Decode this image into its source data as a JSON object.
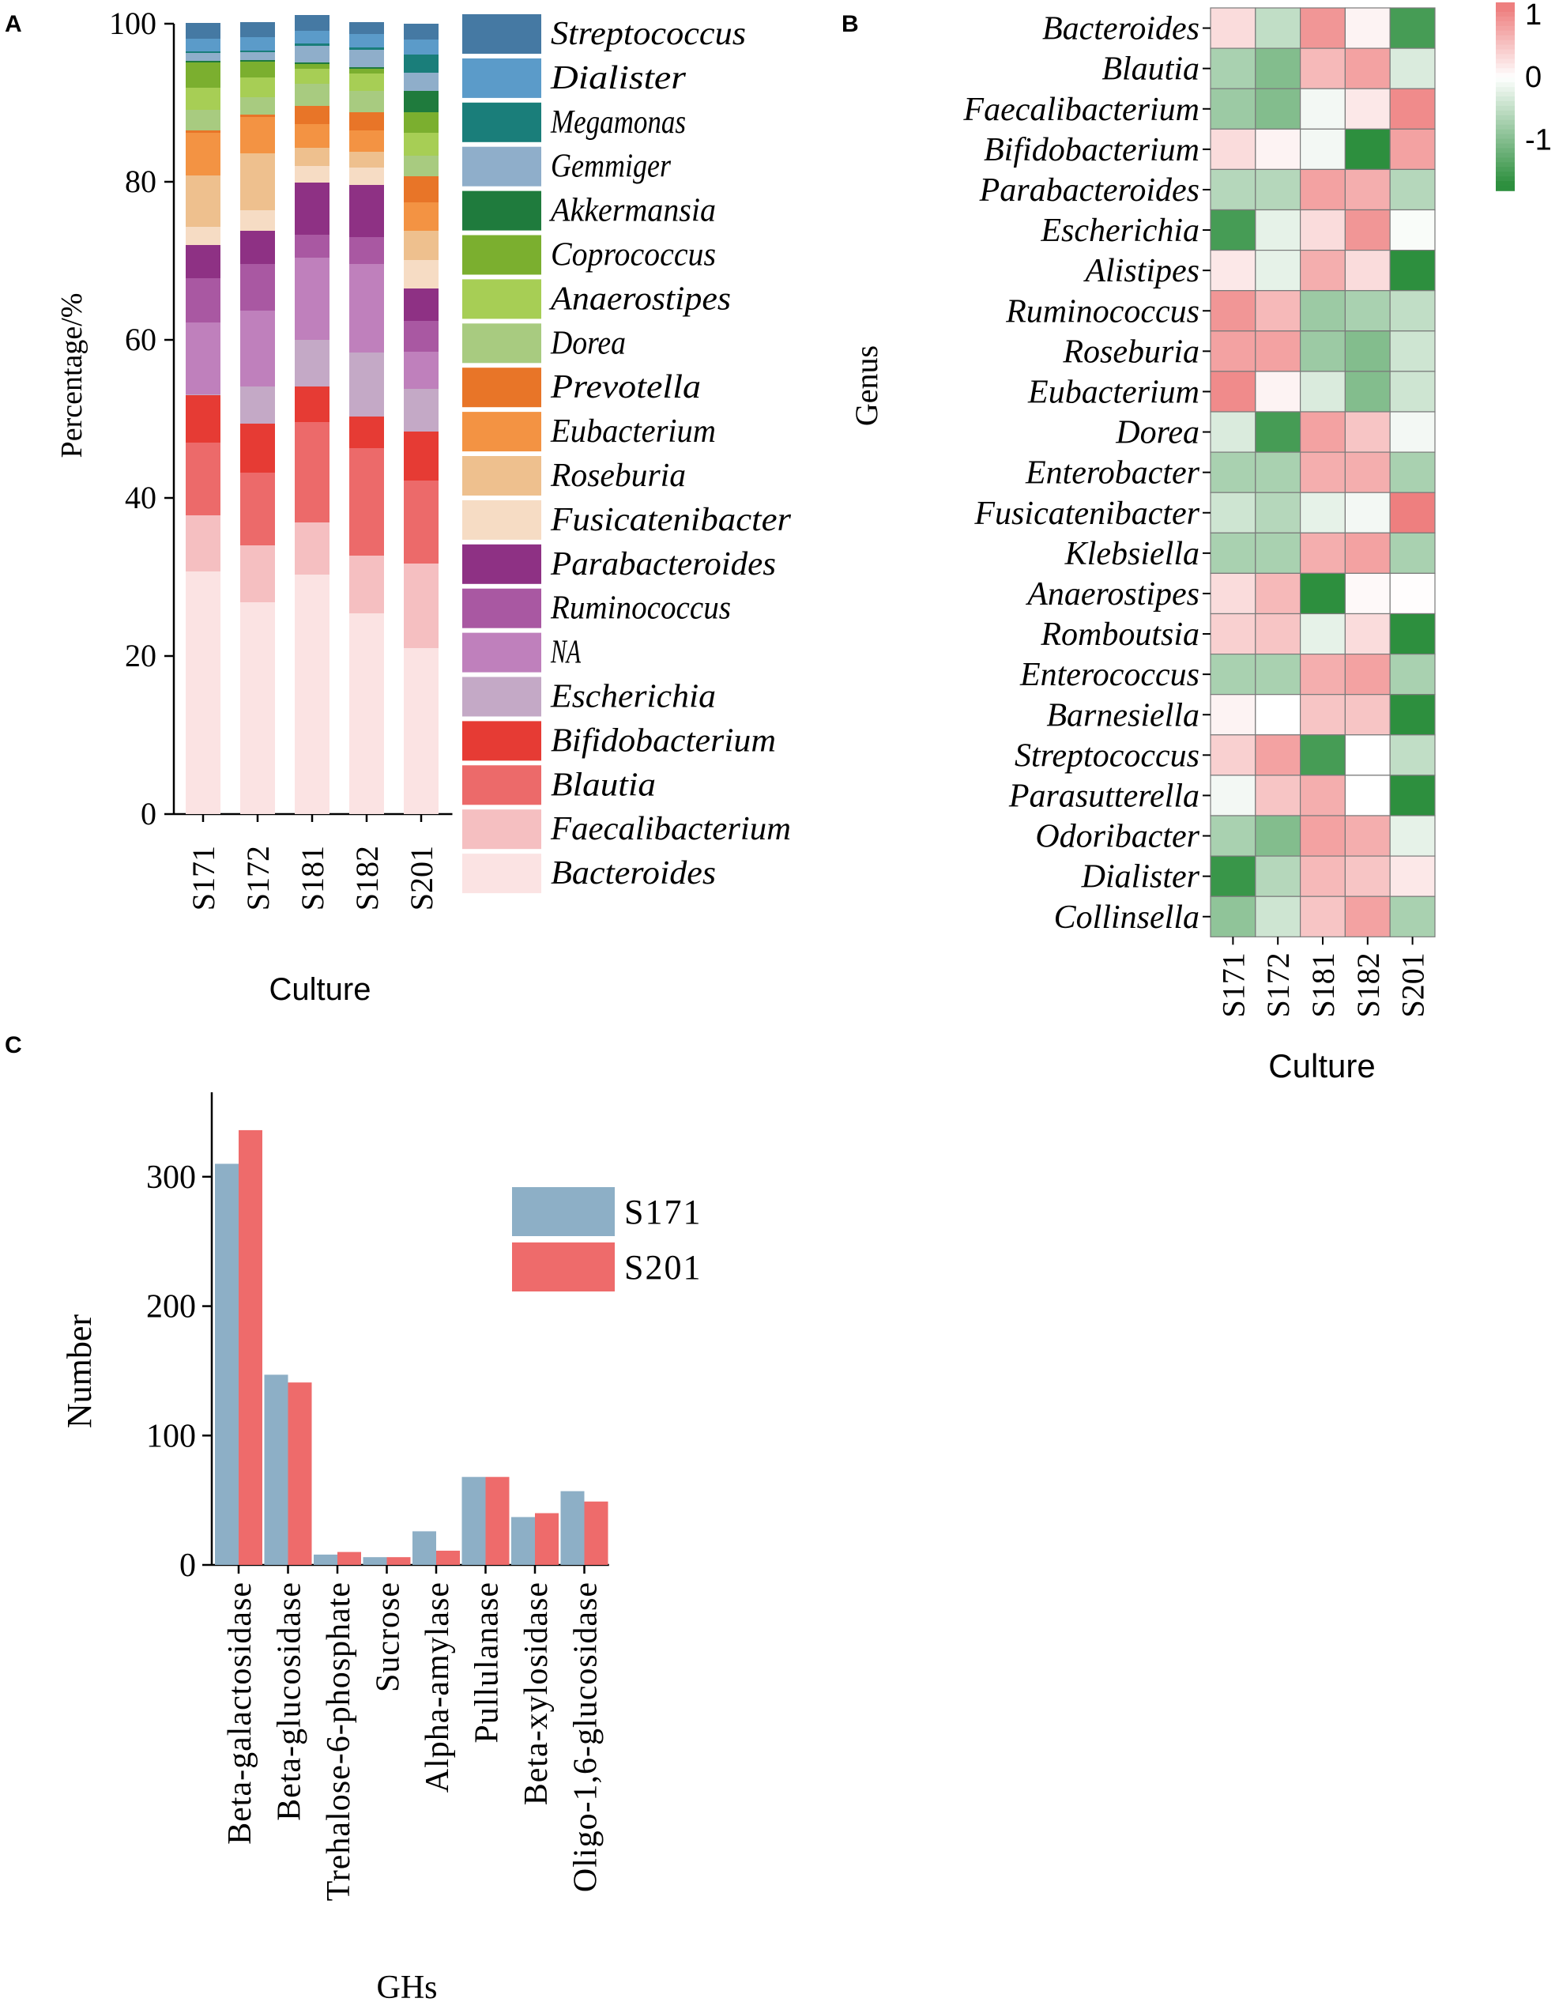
{
  "panels": {
    "a": "A",
    "b": "B",
    "c": "C"
  },
  "chart_data": [
    {
      "id": "A",
      "type": "bar",
      "stacked": true,
      "title": "",
      "xlabel": "Culture",
      "ylabel": "Percentage/%",
      "ylim": [
        0,
        100
      ],
      "yticks": [
        0,
        20,
        40,
        60,
        80,
        100
      ],
      "categories": [
        "S171",
        "S172",
        "S181",
        "S182",
        "S201"
      ],
      "series": [
        {
          "name": "Bacteroides",
          "color": "#FBE3E3",
          "values": [
            30.7,
            26.8,
            30.3,
            25.4,
            21.0
          ]
        },
        {
          "name": "Faecalibacterium",
          "color": "#F5BFC1",
          "values": [
            7.1,
            7.2,
            6.6,
            7.3,
            10.7
          ]
        },
        {
          "name": "Blautia",
          "color": "#EC6A6A",
          "values": [
            9.2,
            9.2,
            12.7,
            13.6,
            10.5
          ]
        },
        {
          "name": "Bifidobacterium",
          "color": "#E63B34",
          "values": [
            6.0,
            6.2,
            4.5,
            4.0,
            6.2
          ]
        },
        {
          "name": "Escherichia",
          "color": "#C4A9C6",
          "values": [
            0.1,
            4.7,
            5.9,
            8.1,
            5.4
          ]
        },
        {
          "name": "NA",
          "color": "#BF80BC",
          "values": [
            9.1,
            9.6,
            10.4,
            11.2,
            4.7
          ]
        },
        {
          "name": "Ruminococcus",
          "color": "#A958A2",
          "values": [
            5.6,
            5.9,
            2.9,
            3.4,
            3.9
          ]
        },
        {
          "name": "Parabacteroides",
          "color": "#8E3184",
          "values": [
            4.2,
            4.2,
            6.6,
            6.6,
            4.1
          ]
        },
        {
          "name": "Fusicatenibacter",
          "color": "#F6DCC4",
          "values": [
            2.3,
            2.6,
            2.1,
            2.2,
            3.6
          ]
        },
        {
          "name": "Roseburia",
          "color": "#EEC08E",
          "values": [
            6.5,
            7.2,
            2.3,
            2.0,
            3.7
          ]
        },
        {
          "name": "Eubacterium",
          "color": "#F39343",
          "values": [
            5.4,
            4.6,
            3.0,
            2.7,
            3.6
          ]
        },
        {
          "name": "Prevotella",
          "color": "#E87528",
          "values": [
            0.3,
            0.3,
            2.3,
            2.3,
            3.3
          ]
        },
        {
          "name": "Dorea",
          "color": "#A8CB80",
          "values": [
            2.6,
            2.2,
            2.8,
            2.7,
            2.6
          ]
        },
        {
          "name": "Anaerostipes",
          "color": "#A7CE55",
          "values": [
            2.8,
            2.5,
            1.9,
            2.2,
            2.9
          ]
        },
        {
          "name": "Coprococcus",
          "color": "#7BAF2F",
          "values": [
            3.2,
            2.0,
            0.6,
            0.6,
            2.6
          ]
        },
        {
          "name": "Akkermansia",
          "color": "#1F7B3D",
          "values": [
            0.2,
            0.2,
            0.2,
            0.2,
            2.7
          ]
        },
        {
          "name": "Gemmiger",
          "color": "#8FAECA",
          "values": [
            1.0,
            1.0,
            2.1,
            2.2,
            2.3
          ]
        },
        {
          "name": "Megamonas",
          "color": "#1A7E7A",
          "values": [
            0.2,
            0.2,
            0.3,
            0.3,
            2.3
          ]
        },
        {
          "name": "Dialister",
          "color": "#5B9BC9",
          "values": [
            1.6,
            1.7,
            1.6,
            1.7,
            1.9
          ]
        },
        {
          "name": "Streptococcus",
          "color": "#4579A3",
          "values": [
            2.0,
            1.9,
            2.0,
            1.5,
            2.0
          ]
        }
      ],
      "legend": "right"
    },
    {
      "id": "B",
      "type": "heatmap",
      "xlabel": "Culture",
      "ylabel": "Genus",
      "columns": [
        "S171",
        "S172",
        "S181",
        "S182",
        "S201"
      ],
      "rows": [
        "Bacteroides",
        "Blautia",
        "Faecalibacterium",
        "Bifidobacterium",
        "Parabacteroides",
        "Escherichia",
        "Alistipes",
        "Ruminococcus",
        "Roseburia",
        "Eubacterium",
        "Dorea",
        "Enterobacter",
        "Fusicatenibacter",
        "Klebsiella",
        "Anaerostipes",
        "Romboutsia",
        "Enterococcus",
        "Barnesiella",
        "Streptococcus",
        "Parasutterella",
        "Odoribacter",
        "Dialister",
        "Collinsella"
      ],
      "values": [
        [
          0.3,
          -0.5,
          0.9,
          0.1,
          -1.5
        ],
        [
          -0.7,
          -1.0,
          0.6,
          0.8,
          -0.3
        ],
        [
          -0.8,
          -1.0,
          -0.1,
          0.2,
          1.0
        ],
        [
          0.3,
          0.1,
          -0.1,
          -1.7,
          0.8
        ],
        [
          -0.6,
          -0.6,
          0.8,
          0.7,
          -0.6
        ],
        [
          -1.5,
          -0.2,
          0.3,
          0.9,
          -0.05
        ],
        [
          0.2,
          -0.2,
          0.7,
          0.3,
          -1.7
        ],
        [
          0.9,
          0.6,
          -0.8,
          -0.7,
          -0.5
        ],
        [
          0.8,
          0.8,
          -0.8,
          -1.0,
          -0.4
        ],
        [
          1.0,
          0.1,
          -0.3,
          -1.0,
          -0.4
        ],
        [
          -0.3,
          -1.5,
          0.8,
          0.5,
          -0.1
        ],
        [
          -0.7,
          -0.7,
          0.7,
          0.7,
          -0.7
        ],
        [
          -0.4,
          -0.6,
          -0.2,
          -0.1,
          1.1
        ],
        [
          -0.7,
          -0.7,
          0.7,
          0.8,
          -0.7
        ],
        [
          0.3,
          0.6,
          -1.7,
          0.05,
          0.02
        ],
        [
          0.4,
          0.5,
          -0.2,
          0.3,
          -1.7
        ],
        [
          -0.7,
          -0.7,
          0.7,
          0.8,
          -0.7
        ],
        [
          0.1,
          0.0,
          0.5,
          0.5,
          -1.7
        ],
        [
          0.4,
          0.8,
          -1.5,
          0.0,
          -0.5
        ],
        [
          -0.1,
          0.5,
          0.7,
          0.0,
          -1.7
        ],
        [
          -0.7,
          -1.0,
          0.8,
          0.7,
          -0.2
        ],
        [
          -1.6,
          -0.6,
          0.6,
          0.5,
          0.2
        ],
        [
          -0.9,
          -0.4,
          0.5,
          0.8,
          -0.7
        ]
      ],
      "colorbar": {
        "ticks": [
          1,
          0,
          -1
        ],
        "range": [
          -1.8,
          1.2
        ],
        "high_color": "#EE7F7F",
        "mid_color": "#FFFFFF",
        "low_color": "#2D8F3E"
      }
    },
    {
      "id": "C",
      "type": "bar",
      "title": "",
      "xlabel": "GHs",
      "ylabel": "Number",
      "ylim": [
        0,
        350
      ],
      "yticks": [
        0,
        100,
        200,
        300
      ],
      "categories": [
        "Beta-galactosidase",
        "Beta-glucosidase",
        "Trehalose-6-phosphate",
        "Sucrose",
        "Alpha-amylase",
        "Pullulanase",
        "Beta-xylosidase",
        "Oligo-1,6-glucosidase"
      ],
      "series": [
        {
          "name": "S171",
          "color": "#8DAFC6",
          "values": [
            310,
            147,
            8,
            6,
            26,
            68,
            37,
            57
          ]
        },
        {
          "name": "S201",
          "color": "#EE6B6B",
          "values": [
            336,
            141,
            10,
            6,
            11,
            68,
            40,
            49
          ]
        }
      ],
      "legend": "top-right"
    }
  ]
}
